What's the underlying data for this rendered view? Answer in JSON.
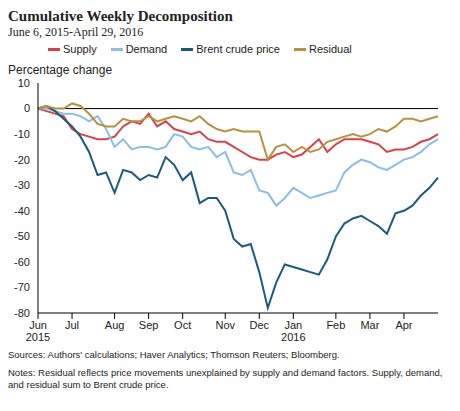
{
  "chart_data": {
    "type": "line",
    "title": "Cumulative Weekly Decomposition",
    "subtitle": "June 6, 2015-April 29, 2016",
    "y_label": "Percentage change",
    "source": "Sources: Authors' calculations; Haver Analytics; Thomson Reuters; Bloomberg.",
    "notes": "Notes: Residual reflects price movements unexplained by supply and demand factors. Supply, demand, and residual sum to Brent crude price.",
    "categories": [
      "Jun 2015",
      null,
      null,
      null,
      "Jul",
      null,
      null,
      null,
      null,
      "Aug",
      null,
      null,
      null,
      "Sep",
      null,
      null,
      null,
      "Oct",
      null,
      null,
      null,
      null,
      "Nov",
      null,
      null,
      null,
      "Dec",
      null,
      null,
      null,
      "Jan 2016",
      null,
      null,
      null,
      null,
      "Feb",
      null,
      null,
      null,
      "Mar",
      null,
      null,
      null,
      "Apr",
      null,
      null,
      null,
      null
    ],
    "series": [
      {
        "name": "Supply",
        "color": "#d9414a",
        "values": [
          0,
          -1,
          -2,
          -3,
          -8,
          -10,
          -11,
          -12,
          -12,
          -11,
          -7,
          -5,
          -6,
          -2,
          -7,
          -5,
          -8,
          -9,
          -10,
          -9,
          -12,
          -13,
          -13,
          -15,
          -17,
          -19,
          -20,
          -20,
          -18,
          -17,
          -19,
          -18,
          -15,
          -12,
          -17,
          -14,
          -12,
          -12,
          -12,
          -13,
          -14,
          -17,
          -16,
          -16,
          -15,
          -13,
          -12,
          -10
        ]
      },
      {
        "name": "Demand",
        "color": "#8bbde6",
        "values": [
          0,
          0,
          -1,
          -2,
          -2,
          -3,
          -5,
          -3,
          -8,
          -15,
          -12,
          -16,
          -15,
          -15,
          -16,
          -15,
          -10,
          -11,
          -15,
          -16,
          -15,
          -19,
          -17,
          -25,
          -26,
          -24,
          -32,
          -33,
          -38,
          -35,
          -31,
          -33,
          -35,
          -34,
          -33,
          -32,
          -25,
          -22,
          -20,
          -21,
          -23,
          -24,
          -22,
          -20,
          -19,
          -17,
          -14,
          -12
        ]
      },
      {
        "name": "Brent crude price",
        "color": "#1b5a7a",
        "values": [
          0,
          1,
          -1,
          -4,
          -7,
          -11,
          -17,
          -26,
          -25,
          -33,
          -24,
          -25,
          -28,
          -26,
          -27,
          -19,
          -22,
          -28,
          -25,
          -37,
          -35,
          -35,
          -40,
          -51,
          -54,
          -53,
          -64,
          -78,
          -68,
          -61,
          -62,
          -63,
          -64,
          -65,
          -59,
          -50,
          -45,
          -43,
          -42,
          -44,
          -46,
          -49,
          -41,
          -40,
          -38,
          -34,
          -31,
          -27
        ]
      },
      {
        "name": "Residual",
        "color": "#b8913a",
        "values": [
          0,
          1,
          0,
          0,
          2,
          1,
          -2,
          -6,
          -7,
          -7,
          -4,
          -5,
          -5,
          -3,
          -5,
          -4,
          -3,
          -4,
          -5,
          -3,
          -6,
          -8,
          -9,
          -8,
          -9,
          -9,
          -9,
          -20,
          -15,
          -14,
          -17,
          -15,
          -17,
          -16,
          -13,
          -12,
          -11,
          -10,
          -11,
          -10,
          -8,
          -9,
          -7,
          -4,
          -4,
          -5,
          -4,
          -3
        ]
      }
    ],
    "ylim": [
      -80,
      10
    ],
    "yticks": [
      -80,
      -70,
      -60,
      -50,
      -40,
      -30,
      -20,
      -10,
      0,
      10
    ],
    "grid": false,
    "legend": "top"
  }
}
